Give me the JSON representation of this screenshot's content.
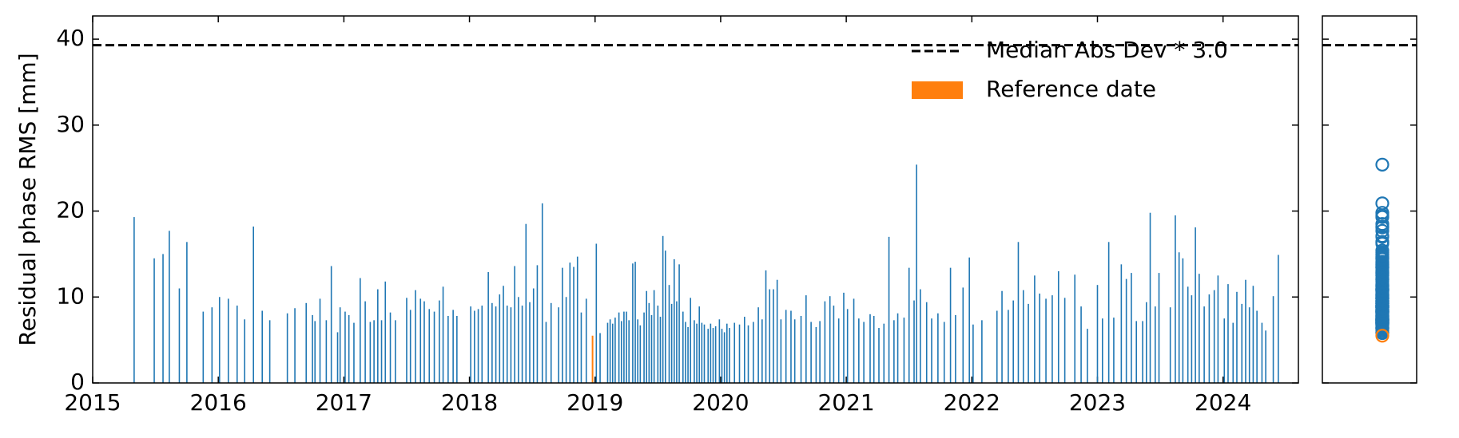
{
  "chart_data": {
    "type": "bar",
    "y_label": "Residual phase RMS [mm]",
    "color": "#1f77b4",
    "x": [
      2015.33,
      2015.49,
      2015.56,
      2015.61,
      2015.69,
      2015.75,
      2015.88,
      2015.95,
      2016.01,
      2016.08,
      2016.15,
      2016.21,
      2016.28,
      2016.35,
      2016.41,
      2016.55,
      2016.61,
      2016.7,
      2016.75,
      2016.77,
      2016.81,
      2016.86,
      2016.9,
      2016.95,
      2016.97,
      2017.01,
      2017.04,
      2017.08,
      2017.13,
      2017.17,
      2017.21,
      2017.24,
      2017.27,
      2017.3,
      2017.33,
      2017.37,
      2017.41,
      2017.5,
      2017.53,
      2017.57,
      2017.61,
      2017.64,
      2017.68,
      2017.72,
      2017.76,
      2017.79,
      2017.83,
      2017.87,
      2017.9,
      2018.01,
      2018.04,
      2018.07,
      2018.1,
      2018.15,
      2018.18,
      2018.21,
      2018.24,
      2018.27,
      2018.3,
      2018.33,
      2018.36,
      2018.39,
      2018.42,
      2018.45,
      2018.48,
      2018.51,
      2018.54,
      2018.58,
      2018.61,
      2018.65,
      2018.71,
      2018.74,
      2018.77,
      2018.8,
      2018.83,
      2018.86,
      2018.89,
      2018.93,
      2019.01,
      2019.04,
      2019.1,
      2019.12,
      2019.14,
      2019.16,
      2019.19,
      2019.21,
      2019.23,
      2019.25,
      2019.27,
      2019.3,
      2019.32,
      2019.34,
      2019.36,
      2019.39,
      2019.41,
      2019.43,
      2019.45,
      2019.47,
      2019.5,
      2019.52,
      2019.54,
      2019.56,
      2019.59,
      2019.61,
      2019.63,
      2019.65,
      2019.67,
      2019.7,
      2019.72,
      2019.74,
      2019.76,
      2019.79,
      2019.81,
      2019.83,
      2019.85,
      2019.87,
      2019.9,
      2019.92,
      2019.94,
      2019.96,
      2019.99,
      2020.01,
      2020.03,
      2020.05,
      2020.07,
      2020.11,
      2020.15,
      2020.19,
      2020.22,
      2020.26,
      2020.3,
      2020.33,
      2020.36,
      2020.39,
      2020.42,
      2020.45,
      2020.48,
      2020.52,
      2020.56,
      2020.59,
      2020.64,
      2020.68,
      2020.72,
      2020.76,
      2020.79,
      2020.83,
      2020.87,
      2020.9,
      2020.94,
      2020.98,
      2021.01,
      2021.06,
      2021.1,
      2021.14,
      2021.19,
      2021.22,
      2021.26,
      2021.3,
      2021.34,
      2021.38,
      2021.41,
      2021.46,
      2021.5,
      2021.54,
      2021.56,
      2021.59,
      2021.64,
      2021.68,
      2021.73,
      2021.78,
      2021.83,
      2021.87,
      2021.93,
      2021.98,
      2022.01,
      2022.08,
      2022.2,
      2022.24,
      2022.29,
      2022.33,
      2022.37,
      2022.41,
      2022.45,
      2022.5,
      2022.54,
      2022.59,
      2022.64,
      2022.69,
      2022.74,
      2022.82,
      2022.87,
      2022.92,
      2023.0,
      2023.04,
      2023.09,
      2023.13,
      2023.19,
      2023.23,
      2023.27,
      2023.31,
      2023.36,
      2023.39,
      2023.42,
      2023.46,
      2023.49,
      2023.58,
      2023.62,
      2023.65,
      2023.68,
      2023.72,
      2023.75,
      2023.78,
      2023.81,
      2023.85,
      2023.89,
      2023.93,
      2023.96,
      2024.01,
      2024.04,
      2024.08,
      2024.11,
      2024.15,
      2024.18,
      2024.21,
      2024.24,
      2024.27,
      2024.31,
      2024.34,
      2024.4,
      2024.44
    ],
    "values": [
      19.3,
      14.5,
      15,
      17.7,
      11,
      16.4,
      8.3,
      8.8,
      10,
      9.8,
      9,
      7.4,
      18.2,
      8.4,
      7.3,
      8.1,
      8.7,
      9.3,
      7.9,
      7.2,
      9.8,
      7.3,
      13.6,
      5.9,
      8.8,
      8.3,
      7.9,
      7,
      12.2,
      9.5,
      7.1,
      7.3,
      10.9,
      7.3,
      11.8,
      8.2,
      7.3,
      9.9,
      8.5,
      10.8,
      9.8,
      9.5,
      8.6,
      8.3,
      9.6,
      11.2,
      7.8,
      8.5,
      7.8,
      8.9,
      8.4,
      8.6,
      9,
      12.9,
      9.3,
      8.9,
      10.3,
      11.3,
      9,
      8.8,
      13.6,
      10,
      9,
      18.5,
      9.4,
      11,
      13.7,
      20.9,
      7.1,
      9.3,
      8.8,
      13.4,
      10,
      14,
      13.5,
      14.7,
      8.2,
      9.8,
      16.2,
      5.8,
      7,
      7.4,
      6.9,
      7.6,
      8.2,
      7.2,
      8.3,
      8.3,
      7.3,
      13.9,
      14.1,
      7.4,
      6.7,
      8.2,
      10.7,
      9.3,
      7.9,
      10.8,
      9,
      7.7,
      17.1,
      15.4,
      11.4,
      9.2,
      14.4,
      9.5,
      13.8,
      8.3,
      7.1,
      6.5,
      9.9,
      7.3,
      6.9,
      8.9,
      7,
      6.8,
      6.3,
      6.9,
      6.4,
      6.6,
      7.4,
      6.3,
      5.9,
      6.9,
      6.4,
      7,
      6.8,
      7.7,
      6.7,
      7.1,
      8.8,
      7.4,
      13.1,
      10.9,
      10.9,
      12,
      7.4,
      8.5,
      8.4,
      7.4,
      7.8,
      10.2,
      7.1,
      6.5,
      7.2,
      9.5,
      10.1,
      9,
      7.5,
      10.5,
      8.6,
      9.8,
      7.5,
      7.1,
      8,
      7.8,
      6.4,
      6.9,
      17,
      7.3,
      8.1,
      7.6,
      13.4,
      9.6,
      25.4,
      10.9,
      9.4,
      7.5,
      8.1,
      7.1,
      13.4,
      7.9,
      11.1,
      14.6,
      6.8,
      7.3,
      8.4,
      10.7,
      8.5,
      9.6,
      16.4,
      10.8,
      9.2,
      12.5,
      10.4,
      9.8,
      10.2,
      13,
      9.9,
      12.6,
      8.9,
      6.3,
      11.4,
      7.5,
      16.4,
      7.6,
      13.8,
      12.1,
      12.8,
      7.2,
      7.2,
      9.4,
      19.8,
      8.9,
      12.8,
      8.8,
      19.5,
      15.2,
      14.5,
      11.2,
      10.2,
      18.1,
      12.7,
      8.9,
      10.3,
      10.8,
      12.5,
      7.5,
      11.5,
      7,
      10.6,
      9.2,
      12,
      8.8,
      11.3,
      8.4,
      7,
      6.1,
      10.1,
      14.9
    ],
    "reference": {
      "name": "Reference date",
      "x": 2018.98,
      "value": 5.5,
      "color": "#ff7f0e"
    },
    "threshold": {
      "name": "Median Abs Dev * 3.0",
      "value": 39.3,
      "color": "#000000"
    },
    "xlim": [
      2015,
      2024.6
    ],
    "xticks": [
      2015,
      2016,
      2017,
      2018,
      2019,
      2020,
      2021,
      2022,
      2023,
      2024
    ],
    "ylim": [
      0,
      42.7
    ],
    "yticks": [
      0,
      10,
      20,
      30,
      40
    ],
    "grid": false,
    "legend": "upper right"
  }
}
